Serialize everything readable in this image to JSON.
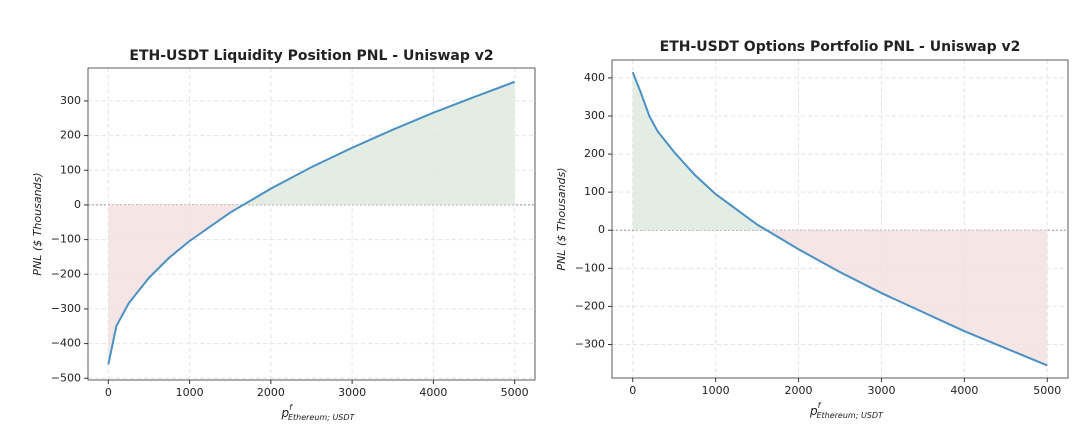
{
  "chart_data": [
    {
      "type": "line",
      "title": "ETH-USDT Liquidity Position PNL - Uniswap v2",
      "ylabel": "PNL ($ Thousands)",
      "xlabel": {
        "base": "p",
        "sup": "f",
        "sub": "Ethereum; USDT"
      },
      "x": [
        0,
        100,
        250,
        500,
        750,
        1000,
        1500,
        2000,
        2500,
        3000,
        3500,
        4000,
        4500,
        5000
      ],
      "series": [
        {
          "color": "#4a90c4",
          "values": [
            -460,
            -349,
            -284,
            -210,
            -152,
            -104,
            -22,
            47,
            109,
            165,
            217,
            266,
            311,
            355
          ]
        }
      ],
      "xlim": [
        -250,
        5250
      ],
      "xticks": [
        0,
        1000,
        2000,
        3000,
        4000,
        5000
      ],
      "ylim": [
        -505,
        395
      ],
      "yticks": [
        {
          "value": -500,
          "label": "−500"
        },
        {
          "value": -400,
          "label": "−400"
        },
        {
          "value": -300,
          "label": "−300"
        },
        {
          "value": -200,
          "label": "−200"
        },
        {
          "value": -100,
          "label": "−100"
        },
        0,
        100,
        200,
        300
      ],
      "grid": true,
      "gain_color": "#dde9dd",
      "loss_color": "#f2dede"
    },
    {
      "type": "line",
      "title": "ETH-USDT Options Portfolio PNL - Uniswap v2",
      "ylabel": "PNL ($ Thousands)",
      "xlabel": {
        "base": "p",
        "sup": "f",
        "sub": "Ethereum; USDT"
      },
      "x": [
        0,
        100,
        200,
        300,
        500,
        750,
        1000,
        1500,
        2000,
        2500,
        3000,
        3500,
        4000,
        4500,
        5000
      ],
      "series": [
        {
          "color": "#4a90c4",
          "values": [
            415,
            360,
            300,
            260,
            205,
            145,
            95,
            15,
            -50,
            -110,
            -165,
            -215,
            -265,
            -310,
            -355
          ]
        }
      ],
      "xlim": [
        -250,
        5250
      ],
      "xticks": [
        0,
        1000,
        2000,
        3000,
        4000,
        5000
      ],
      "ylim": [
        -388,
        447
      ],
      "yticks": [
        {
          "value": -300,
          "label": "−300"
        },
        {
          "value": -200,
          "label": "−200"
        },
        {
          "value": -100,
          "label": "−100"
        },
        0,
        100,
        200,
        300,
        400
      ],
      "grid": true,
      "gain_color": "#dde9dd",
      "loss_color": "#f2dede"
    }
  ]
}
